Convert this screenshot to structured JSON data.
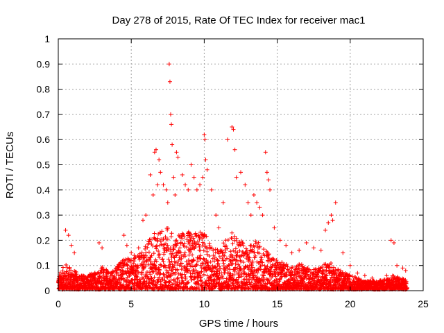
{
  "chart_data": {
    "type": "scatter",
    "title": "Day 278 of 2015, Rate Of TEC Index for receiver mac1",
    "xlabel": "GPS time / hours",
    "ylabel": "ROTI / TECUs",
    "xlim": [
      0,
      25
    ],
    "ylim": [
      0,
      1
    ],
    "x_ticks": [
      "0",
      "5",
      "10",
      "15",
      "20",
      "25"
    ],
    "y_ticks": [
      "0",
      "0.1",
      "0.2",
      "0.3",
      "0.4",
      "0.5",
      "0.6",
      "0.7",
      "0.8",
      "0.9",
      "1"
    ],
    "grid": true,
    "legend": "none",
    "marker": "+",
    "colors": {
      "points": "#ff0000",
      "axes": "#000000",
      "grid": "#a0a0a0"
    },
    "series": [
      {
        "x": [
          0.5,
          0.7,
          0.9,
          1.1,
          2.8,
          3.0,
          4.5,
          4.7,
          5.0,
          5.2,
          5.5,
          5.8,
          6.0,
          6.3,
          6.5,
          6.6,
          6.7,
          6.8,
          6.9,
          7.0,
          7.2,
          7.4,
          7.5,
          7.6,
          7.65,
          7.7,
          7.75,
          7.8,
          7.9,
          8.0,
          8.1,
          8.2,
          8.5,
          8.7,
          8.9,
          9.1,
          9.3,
          9.5,
          9.7,
          9.9,
          10.0,
          10.05,
          10.1,
          10.2,
          10.5,
          10.8,
          11.0,
          11.3,
          11.6,
          11.9,
          12.0,
          12.1,
          12.2,
          12.5,
          12.8,
          13.0,
          13.2,
          13.4,
          13.6,
          13.8,
          14.0,
          14.2,
          14.3,
          14.4,
          14.5,
          14.8,
          15.2,
          15.6,
          16.0,
          16.5,
          17.0,
          17.5,
          18.0,
          18.3,
          18.5,
          18.7,
          18.8,
          19.0,
          19.5,
          20.0,
          20.5,
          21.0,
          21.5,
          22.0,
          22.5,
          22.8,
          23.0,
          23.2,
          23.6,
          23.8
        ],
        "y": [
          0.24,
          0.22,
          0.18,
          0.15,
          0.19,
          0.17,
          0.22,
          0.18,
          0.15,
          0.14,
          0.17,
          0.28,
          0.3,
          0.46,
          0.38,
          0.55,
          0.56,
          0.42,
          0.52,
          0.47,
          0.42,
          0.4,
          0.35,
          0.9,
          0.83,
          0.7,
          0.66,
          0.58,
          0.45,
          0.38,
          0.55,
          0.53,
          0.46,
          0.42,
          0.4,
          0.5,
          0.45,
          0.4,
          0.42,
          0.45,
          0.62,
          0.6,
          0.52,
          0.48,
          0.4,
          0.3,
          0.25,
          0.35,
          0.6,
          0.65,
          0.64,
          0.56,
          0.45,
          0.47,
          0.42,
          0.35,
          0.3,
          0.38,
          0.35,
          0.33,
          0.3,
          0.55,
          0.47,
          0.44,
          0.4,
          0.25,
          0.2,
          0.18,
          0.15,
          0.16,
          0.19,
          0.17,
          0.16,
          0.24,
          0.27,
          0.3,
          0.28,
          0.35,
          0.15,
          0.1,
          0.07,
          0.06,
          0.05,
          0.04,
          0.06,
          0.2,
          0.19,
          0.1,
          0.09,
          0.08
        ],
        "density": [
          [
            0.0,
            0.05
          ],
          [
            0.5,
            0.09
          ],
          [
            1.0,
            0.07
          ],
          [
            1.5,
            0.05
          ],
          [
            2.0,
            0.05
          ],
          [
            2.5,
            0.06
          ],
          [
            3.0,
            0.08
          ],
          [
            3.5,
            0.06
          ],
          [
            4.0,
            0.08
          ],
          [
            4.5,
            0.12
          ],
          [
            5.0,
            0.1
          ],
          [
            5.5,
            0.12
          ],
          [
            6.0,
            0.16
          ],
          [
            6.5,
            0.2
          ],
          [
            7.0,
            0.2
          ],
          [
            7.5,
            0.22
          ],
          [
            8.0,
            0.18
          ],
          [
            8.5,
            0.2
          ],
          [
            9.0,
            0.2
          ],
          [
            9.5,
            0.2
          ],
          [
            10.0,
            0.2
          ],
          [
            10.5,
            0.15
          ],
          [
            11.0,
            0.14
          ],
          [
            11.5,
            0.18
          ],
          [
            12.0,
            0.2
          ],
          [
            12.5,
            0.17
          ],
          [
            13.0,
            0.14
          ],
          [
            13.5,
            0.18
          ],
          [
            14.0,
            0.15
          ],
          [
            14.5,
            0.12
          ],
          [
            15.0,
            0.1
          ],
          [
            15.5,
            0.09
          ],
          [
            16.0,
            0.08
          ],
          [
            16.5,
            0.09
          ],
          [
            17.0,
            0.08
          ],
          [
            17.5,
            0.07
          ],
          [
            18.0,
            0.08
          ],
          [
            18.5,
            0.1
          ],
          [
            19.0,
            0.08
          ],
          [
            19.5,
            0.06
          ],
          [
            20.0,
            0.05
          ],
          [
            20.5,
            0.04
          ],
          [
            21.0,
            0.03
          ],
          [
            21.5,
            0.03
          ],
          [
            22.0,
            0.03
          ],
          [
            22.5,
            0.04
          ],
          [
            23.0,
            0.05
          ],
          [
            23.5,
            0.04
          ],
          [
            23.9,
            0.03
          ]
        ]
      }
    ]
  }
}
